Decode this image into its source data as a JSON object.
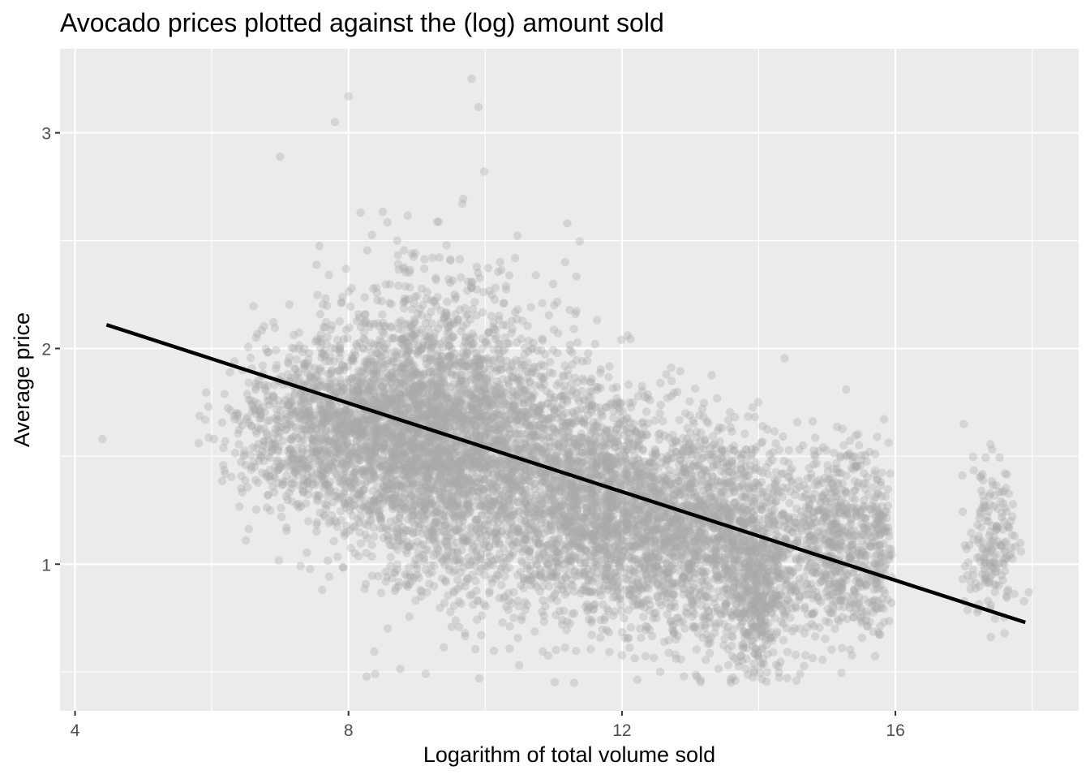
{
  "chart_data": {
    "type": "scatter",
    "title": "Avocado prices plotted against the (log) amount sold",
    "xlabel": "Logarithm of total volume sold",
    "ylabel": "Average price",
    "xlim": [
      3.78,
      18.68
    ],
    "ylim": [
      0.32,
      3.39
    ],
    "x_ticks": [
      4,
      8,
      12,
      16
    ],
    "x_tick_labels": [
      "4",
      "8",
      "12",
      "16"
    ],
    "y_ticks": [
      1,
      2,
      3
    ],
    "y_tick_labels": [
      "1",
      "2",
      "3"
    ],
    "grid": true,
    "point_color": "#a9a9a9",
    "point_opacity": 0.35,
    "panel_background": "#ebebeb",
    "trend_line": {
      "type": "linear",
      "color": "#000000",
      "points": [
        [
          4.46,
          2.11
        ],
        [
          17.9,
          0.73
        ]
      ]
    },
    "point_clusters": [
      {
        "x_mean": 7.9,
        "x_sd": 0.75,
        "y_mean": 1.62,
        "y_sd": 0.22,
        "n": 1400
      },
      {
        "x_mean": 9.2,
        "x_sd": 0.7,
        "y_mean": 1.62,
        "y_sd": 0.35,
        "n": 2000
      },
      {
        "x_mean": 10.5,
        "x_sd": 0.7,
        "y_mean": 1.45,
        "y_sd": 0.3,
        "n": 1400
      },
      {
        "x_mean": 11.8,
        "x_sd": 0.6,
        "y_mean": 1.25,
        "y_sd": 0.25,
        "n": 1400
      },
      {
        "x_mean": 13.2,
        "x_sd": 0.55,
        "y_mean": 1.15,
        "y_sd": 0.25,
        "n": 1200
      },
      {
        "x_mean": 14.0,
        "x_sd": 0.25,
        "y_mean": 0.9,
        "y_sd": 0.2,
        "n": 500
      },
      {
        "x_mean": 15.2,
        "x_sd": 0.5,
        "y_mean": 1.1,
        "y_sd": 0.22,
        "n": 800
      },
      {
        "x_mean": 17.4,
        "x_sd": 0.2,
        "y_mean": 1.1,
        "y_sd": 0.18,
        "n": 180
      }
    ],
    "notable_points": [
      [
        4.4,
        1.58
      ],
      [
        5.95,
        1.73
      ],
      [
        6.5,
        1.11
      ],
      [
        7.8,
        3.05
      ],
      [
        8.0,
        3.17
      ],
      [
        9.8,
        3.25
      ],
      [
        9.9,
        3.12
      ],
      [
        11.3,
        0.45
      ],
      [
        14.55,
        0.46
      ],
      [
        17.95,
        0.87
      ],
      [
        17.0,
        1.65
      ],
      [
        11.2,
        2.58
      ],
      [
        7.0,
        2.89
      ]
    ]
  }
}
